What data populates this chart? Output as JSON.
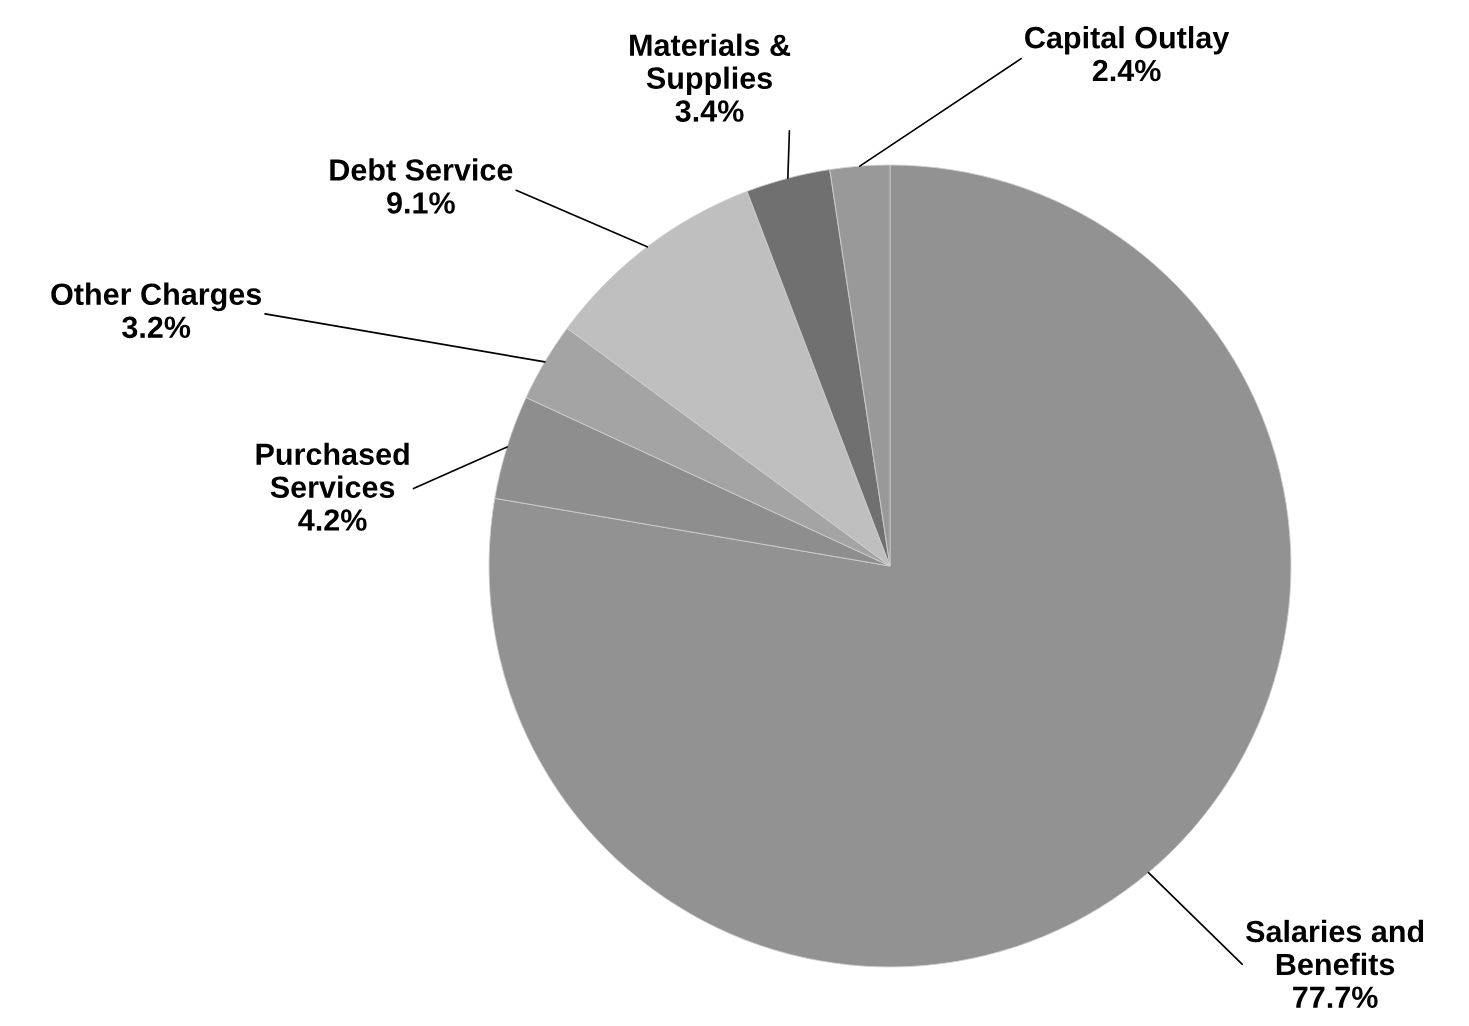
{
  "chart_data": {
    "type": "pie",
    "categories": [
      "Salaries and\nBenefits",
      "Purchased\nServices",
      "Other Charges",
      "Debt Service",
      "Materials &\nSupplies",
      "Capital Outlay"
    ],
    "values": [
      77.7,
      4.2,
      3.2,
      9.1,
      3.4,
      2.4
    ],
    "value_labels": [
      "77.7%",
      "4.2%",
      "3.2%",
      "9.1%",
      "3.4%",
      "2.4%"
    ],
    "colors": [
      "#929292",
      "#8e8e8e",
      "#a4a4a4",
      "#bfbfbf",
      "#707070",
      "#999999"
    ],
    "legend": false
  }
}
